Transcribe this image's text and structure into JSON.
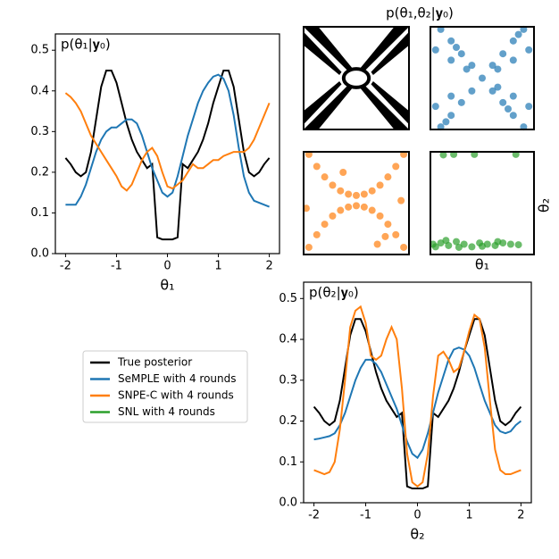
{
  "joint": {
    "title": "p(θ₁,θ₂|𝐲₀)",
    "xlabel": "θ₁",
    "ylabel": "θ₂"
  },
  "chart_data": [
    {
      "type": "line",
      "title": "p(θ₁|𝐲₀)",
      "xlabel": "θ₁",
      "x": [
        -2,
        -1.9,
        -1.8,
        -1.7,
        -1.6,
        -1.5,
        -1.4,
        -1.3,
        -1.2,
        -1.1,
        -1,
        -0.9,
        -0.8,
        -0.7,
        -0.6,
        -0.5,
        -0.4,
        -0.3,
        -0.2,
        -0.1,
        0,
        0.1,
        0.2,
        0.3,
        0.4,
        0.5,
        0.6,
        0.7,
        0.8,
        0.9,
        1,
        1.1,
        1.2,
        1.3,
        1.4,
        1.5,
        1.6,
        1.7,
        1.8,
        1.9,
        2
      ],
      "xlim": [
        -2.2,
        2.2
      ],
      "xticks": [
        -2,
        -1,
        0,
        1,
        2
      ],
      "ylim": [
        0,
        0.54
      ],
      "yticks": [
        {
          "value": 0,
          "label": "0.0"
        },
        0.1,
        0.2,
        0.3,
        0.4,
        0.5
      ],
      "series": [
        {
          "name": "True posterior",
          "color": "#000000",
          "values": [
            0.235,
            0.22,
            0.2,
            0.19,
            0.2,
            0.25,
            0.33,
            0.41,
            0.45,
            0.45,
            0.42,
            0.37,
            0.32,
            0.28,
            0.25,
            0.23,
            0.21,
            0.22,
            0.04,
            0.035,
            0.035,
            0.035,
            0.04,
            0.22,
            0.21,
            0.23,
            0.25,
            0.28,
            0.32,
            0.37,
            0.41,
            0.45,
            0.45,
            0.41,
            0.33,
            0.25,
            0.2,
            0.19,
            0.2,
            0.22,
            0.235
          ]
        },
        {
          "name": "SeMPLE with 4 rounds",
          "color": "#1f77b4",
          "values": [
            0.12,
            0.12,
            0.12,
            0.14,
            0.17,
            0.21,
            0.25,
            0.28,
            0.3,
            0.31,
            0.31,
            0.32,
            0.33,
            0.33,
            0.32,
            0.29,
            0.25,
            0.21,
            0.18,
            0.15,
            0.14,
            0.15,
            0.19,
            0.24,
            0.29,
            0.33,
            0.37,
            0.4,
            0.42,
            0.435,
            0.44,
            0.43,
            0.4,
            0.34,
            0.26,
            0.19,
            0.15,
            0.13,
            0.125,
            0.12,
            0.115
          ]
        },
        {
          "name": "SNPE-C with 4 rounds",
          "color": "#ff7f0e",
          "values": [
            0.395,
            0.385,
            0.37,
            0.35,
            0.32,
            0.29,
            0.27,
            0.25,
            0.23,
            0.21,
            0.19,
            0.165,
            0.155,
            0.17,
            0.2,
            0.23,
            0.25,
            0.26,
            0.24,
            0.2,
            0.165,
            0.16,
            0.17,
            0.18,
            0.2,
            0.22,
            0.21,
            0.21,
            0.22,
            0.23,
            0.23,
            0.24,
            0.245,
            0.25,
            0.25,
            0.25,
            0.26,
            0.28,
            0.31,
            0.34,
            0.37
          ]
        }
      ]
    },
    {
      "type": "line",
      "title": "p(θ₂|𝐲₀)",
      "xlabel": "θ₂",
      "x": [
        -2,
        -1.9,
        -1.8,
        -1.7,
        -1.6,
        -1.5,
        -1.4,
        -1.3,
        -1.2,
        -1.1,
        -1,
        -0.9,
        -0.8,
        -0.7,
        -0.6,
        -0.5,
        -0.4,
        -0.3,
        -0.2,
        -0.1,
        0,
        0.1,
        0.2,
        0.3,
        0.4,
        0.5,
        0.6,
        0.7,
        0.8,
        0.9,
        1,
        1.1,
        1.2,
        1.3,
        1.4,
        1.5,
        1.6,
        1.7,
        1.8,
        1.9,
        2
      ],
      "xlim": [
        -2.2,
        2.2
      ],
      "xticks": [
        -2,
        -1,
        0,
        1,
        2
      ],
      "ylim": [
        0,
        0.54
      ],
      "yticks": [
        {
          "value": 0,
          "label": "0.0"
        },
        0.1,
        0.2,
        0.3,
        0.4,
        0.5
      ],
      "series": [
        {
          "name": "True posterior",
          "color": "#000000",
          "values": [
            0.235,
            0.22,
            0.2,
            0.19,
            0.2,
            0.25,
            0.33,
            0.41,
            0.45,
            0.45,
            0.42,
            0.37,
            0.32,
            0.28,
            0.25,
            0.23,
            0.21,
            0.22,
            0.04,
            0.035,
            0.035,
            0.035,
            0.04,
            0.22,
            0.21,
            0.23,
            0.25,
            0.28,
            0.32,
            0.37,
            0.41,
            0.45,
            0.45,
            0.41,
            0.33,
            0.25,
            0.2,
            0.19,
            0.2,
            0.22,
            0.235
          ]
        },
        {
          "name": "SeMPLE with 4 rounds",
          "color": "#1f77b4",
          "values": [
            0.155,
            0.157,
            0.16,
            0.163,
            0.17,
            0.19,
            0.22,
            0.26,
            0.3,
            0.33,
            0.35,
            0.35,
            0.34,
            0.32,
            0.29,
            0.26,
            0.23,
            0.19,
            0.15,
            0.12,
            0.11,
            0.13,
            0.17,
            0.22,
            0.27,
            0.31,
            0.35,
            0.375,
            0.38,
            0.375,
            0.36,
            0.33,
            0.29,
            0.25,
            0.22,
            0.19,
            0.175,
            0.17,
            0.175,
            0.19,
            0.2
          ]
        },
        {
          "name": "SNPE-C with 4 rounds",
          "color": "#ff7f0e",
          "values": [
            0.08,
            0.075,
            0.07,
            0.075,
            0.1,
            0.18,
            0.3,
            0.43,
            0.47,
            0.48,
            0.44,
            0.36,
            0.35,
            0.36,
            0.4,
            0.43,
            0.4,
            0.28,
            0.12,
            0.05,
            0.04,
            0.05,
            0.12,
            0.26,
            0.36,
            0.37,
            0.35,
            0.32,
            0.33,
            0.37,
            0.42,
            0.46,
            0.45,
            0.38,
            0.25,
            0.13,
            0.08,
            0.07,
            0.07,
            0.075,
            0.08
          ]
        }
      ]
    },
    {
      "type": "density",
      "color": "#000000"
    },
    {
      "type": "scatter",
      "xlim": [
        -2,
        2
      ],
      "ylim": [
        -2,
        2
      ],
      "series": [
        {
          "name": "SeMPLE with 4 rounds",
          "color": "#1f77b4",
          "x": [
            -1.6,
            -1.2,
            -0.8,
            -0.4,
            0.4,
            0.8,
            1.2,
            1.6,
            -1.6,
            -1.2,
            -0.8,
            -0.4,
            0.4,
            0.8,
            1.2,
            1.6,
            -1.8,
            -1.2,
            -0.6,
            0.6,
            1.2,
            1.8,
            -1.8,
            -1.2,
            0.6,
            1.2,
            1.8,
            0,
            -1.4,
            1.4,
            -1,
            1
          ],
          "y": [
            -1.9,
            -1.45,
            -0.95,
            -0.5,
            0.5,
            0.95,
            1.45,
            1.9,
            1.9,
            1.45,
            0.95,
            0.5,
            -0.5,
            -0.95,
            -1.45,
            -1.9,
            1.1,
            0.7,
            0.35,
            -0.35,
            -0.7,
            -1.1,
            -1.1,
            -0.7,
            0.35,
            0.7,
            1.1,
            0,
            -1.7,
            1.7,
            1.2,
            -1.2
          ]
        }
      ]
    },
    {
      "type": "scatter",
      "xlim": [
        -2,
        2
      ],
      "ylim": [
        -2,
        2
      ],
      "series": [
        {
          "name": "SNPE-C with 4 rounds",
          "color": "#ff7f0e",
          "x": [
            -1.8,
            -1.5,
            -1.2,
            -0.9,
            -0.6,
            -0.3,
            0,
            0.3,
            0.6,
            0.9,
            1.2,
            1.5,
            1.8,
            -1.8,
            -1.5,
            -1.2,
            -0.9,
            -0.6,
            -0.3,
            0,
            0.3,
            0.6,
            0.9,
            1.2,
            1.5,
            1.8,
            -1.9,
            1.7,
            0.8,
            -0.5,
            1.1
          ],
          "y": [
            1.9,
            1.43,
            1.02,
            0.7,
            0.48,
            0.35,
            0.3,
            0.35,
            0.48,
            0.7,
            1.02,
            1.43,
            1.9,
            -1.72,
            -1.23,
            -0.82,
            -0.5,
            -0.28,
            -0.15,
            -0.1,
            -0.15,
            -0.28,
            -0.5,
            -0.82,
            -1.23,
            -1.72,
            -0.2,
            0.1,
            -1.6,
            1.2,
            -1.3
          ]
        }
      ]
    },
    {
      "type": "scatter",
      "xlim": [
        -2,
        2
      ],
      "ylim": [
        -2,
        2
      ],
      "series": [
        {
          "name": "SNL with 4 rounds",
          "color": "#2ca02c",
          "x": [
            -1.9,
            -1.6,
            -1.3,
            -1,
            -0.7,
            -0.4,
            -0.1,
            0.2,
            0.5,
            0.8,
            1.1,
            1.4,
            -1.8,
            -0.9,
            0,
            0.6,
            -1.4,
            -1.1,
            -0.3,
            1.3,
            -1.5
          ],
          "y": [
            -1.6,
            -1.55,
            -1.65,
            -1.5,
            -1.6,
            -1.7,
            -1.55,
            -1.6,
            -1.65,
            -1.55,
            -1.6,
            -1.62,
            -1.7,
            -1.72,
            -1.68,
            -1.5,
            -1.45,
            1.9,
            1.9,
            1.9,
            1.88
          ]
        }
      ]
    }
  ]
}
